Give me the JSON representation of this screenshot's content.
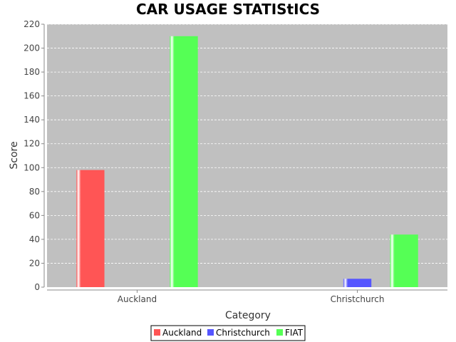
{
  "chart_data": {
    "type": "bar",
    "title": "CAR USAGE STATIStICS",
    "xlabel": "Category",
    "ylabel": "Score",
    "categories": [
      "Auckland",
      "Christchurch"
    ],
    "series": [
      {
        "name": "Auckland",
        "values": [
          98,
          0
        ],
        "color": "#ff5555"
      },
      {
        "name": "Christchurch",
        "values": [
          0,
          7
        ],
        "color": "#5555ff"
      },
      {
        "name": "FIAT",
        "values": [
          210,
          44
        ],
        "color": "#55ff55"
      }
    ],
    "ylim": [
      0,
      220
    ],
    "yticks": [
      0,
      20,
      40,
      60,
      80,
      100,
      120,
      140,
      160,
      180,
      200,
      220
    ],
    "grid": true,
    "plot_background": "#c0c0c0",
    "legend_position": "bottom"
  }
}
